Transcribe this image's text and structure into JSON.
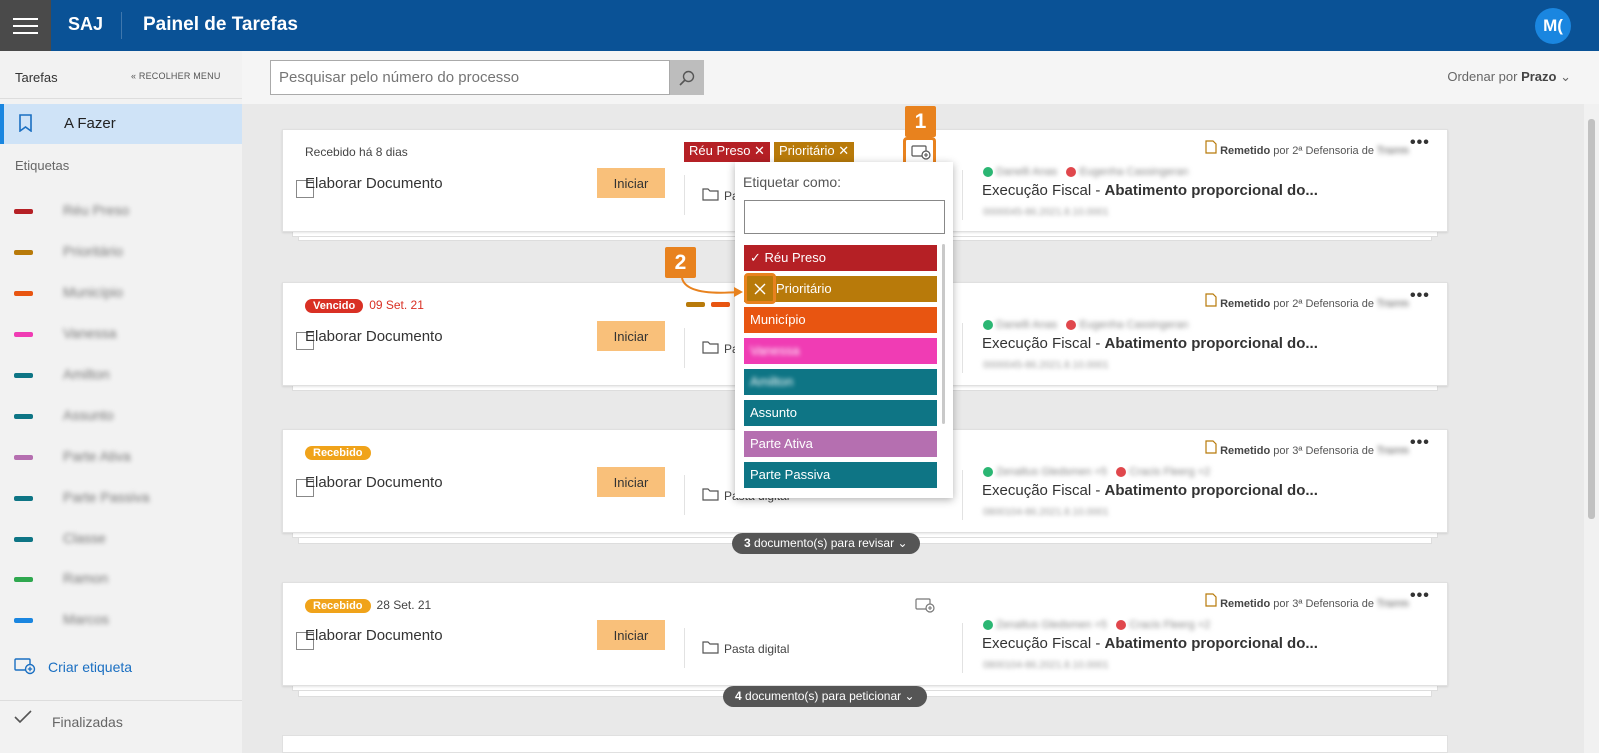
{
  "header": {
    "brand": "SAJ",
    "title": "Painel de Tarefas",
    "avatar": "M("
  },
  "sidebar": {
    "title": "Tarefas",
    "collapse": "« RECOLHER MENU",
    "active_item": "A Fazer",
    "tags_title": "Etiquetas",
    "tags": [
      {
        "label": "Réu Preso",
        "color": "#b52025"
      },
      {
        "label": "Prioritário",
        "color": "#b87a0a"
      },
      {
        "label": "Município",
        "color": "#e85511"
      },
      {
        "label": "Vanessa",
        "color": "#f03cb4"
      },
      {
        "label": "Amilton",
        "color": "#0e7585"
      },
      {
        "label": "Assunto",
        "color": "#0e7585"
      },
      {
        "label": "Parte Ativa",
        "color": "#b56fb0"
      },
      {
        "label": "Parte Passiva",
        "color": "#0e7585"
      },
      {
        "label": "Classe",
        "color": "#0e7585"
      },
      {
        "label": "Ramon",
        "color": "#2fa84f"
      },
      {
        "label": "Marcos",
        "color": "#1a86e0"
      }
    ],
    "create_label": "Criar etiqueta",
    "finalized_label": "Finalizadas"
  },
  "toolbar": {
    "search_placeholder": "Pesquisar pelo número do processo",
    "order_prefix": "Ordenar por",
    "order_value": "Prazo"
  },
  "cards": [
    {
      "status_text": "Recebido há 8 dias",
      "title": "Elaborar Documento",
      "button": "Iniciar",
      "pasta": "Pasta digital",
      "remetido_label": "Remetido",
      "remetido_rest": "por 2ª Defensoria de",
      "party_a": "Danelli Anas",
      "party_b": "Eugenha Cassingeran",
      "exec_prefix": "Execução Fiscal -",
      "exec_bold": "Abatimento proporcional do...",
      "proc": "0000045-86.2021.8.10.0001",
      "chips": [
        {
          "label": "Réu Preso",
          "color": "#b52025"
        },
        {
          "label": "Prioritário",
          "color": "#b87a0a"
        }
      ]
    },
    {
      "badge": "Vencido",
      "date": "09 Set. 21",
      "title": "Elaborar Documento",
      "button": "Iniciar",
      "pasta": "Pasta digital",
      "remetido_label": "Remetido",
      "remetido_rest": "por 2ª Defensoria de",
      "party_a": "Danelli Anas",
      "party_b": "Eugenha Cassingeran",
      "exec_prefix": "Execução Fiscal -",
      "exec_bold": "Abatimento proporcional do...",
      "proc": "0000045-86.2021.8.10.0001"
    },
    {
      "badge": "Recebido",
      "title": "Elaborar Documento",
      "button": "Iniciar",
      "pasta": "Pasta digital",
      "remetido_label": "Remetido",
      "remetido_rest": "por 3ª Defensoria de",
      "party_a": "Zenaltus Gledsmen +5",
      "party_b": "Cracis Fleerg +2",
      "exec_prefix": "Execução Fiscal -",
      "exec_bold": "Abatimento proporcional do...",
      "proc": "0800104-86.2021.8.10.0001",
      "pill_count": "3",
      "pill_text": "documento(s) para revisar"
    },
    {
      "badge": "Recebido",
      "date": "28 Set. 21",
      "title": "Elaborar Documento",
      "button": "Iniciar",
      "pasta": "Pasta digital",
      "remetido_label": "Remetido",
      "remetido_rest": "por 3ª Defensoria de",
      "party_a": "Zenaltus Gledsmen +5",
      "party_b": "Cracis Fleerg +2",
      "exec_prefix": "Execução Fiscal -",
      "exec_bold": "Abatimento proporcional do...",
      "proc": "0800104-86.2021.8.10.0001",
      "pill_count": "4",
      "pill_text": "documento(s) para peticionar"
    }
  ],
  "dropdown": {
    "title": "Etiquetar como:",
    "items": [
      {
        "label": "Réu Preso",
        "color": "#b52025",
        "state": "checked"
      },
      {
        "label": "Prioritário",
        "color": "#b87a0a",
        "state": "remove"
      },
      {
        "label": "Município",
        "color": "#e85511"
      },
      {
        "label": "Vanessa",
        "color": "#f03cb4"
      },
      {
        "label": "Amilton",
        "color": "#0e7585"
      },
      {
        "label": "Assunto",
        "color": "#0e7585"
      },
      {
        "label": "Parte Ativa",
        "color": "#b56fb0"
      },
      {
        "label": "Parte Passiva",
        "color": "#0e7585"
      }
    ]
  },
  "callouts": [
    "1",
    "2"
  ]
}
